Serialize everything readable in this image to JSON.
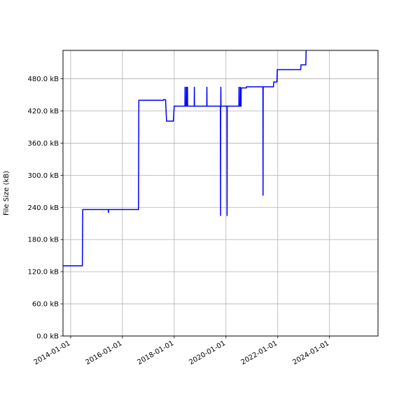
{
  "chart_data": {
    "type": "line",
    "title": "",
    "xlabel": "",
    "ylabel": "File Size (kB)",
    "grid": true,
    "legend": "none",
    "line_color": "#0000ff",
    "xlim": [
      "2013-09-15",
      "2025-11-15"
    ],
    "ylim": [
      0,
      533
    ],
    "x_ticks": [
      "2014-01-01",
      "2016-01-01",
      "2018-01-01",
      "2020-01-01",
      "2022-01-01",
      "2024-01-01"
    ],
    "y_ticks": [
      0,
      60,
      120,
      180,
      240,
      300,
      360,
      420,
      480
    ],
    "y_tick_labels": [
      "0.0 kB",
      "60.0 kB",
      "120.0 kB",
      "180.0 kB",
      "240.0 kB",
      "300.0 kB",
      "360.0 kB",
      "420.0 kB",
      "480.0 kB"
    ],
    "series": [
      {
        "values": [
          [
            "2013-09-15",
            131
          ],
          [
            "2014-06-15",
            131
          ],
          [
            "2014-06-20",
            236
          ],
          [
            "2015-06-15",
            236
          ],
          [
            "2015-06-18",
            230
          ],
          [
            "2015-06-21",
            236
          ],
          [
            "2016-08-15",
            236
          ],
          [
            "2016-08-20",
            440
          ],
          [
            "2017-08-01",
            440
          ],
          [
            "2017-08-05",
            441
          ],
          [
            "2017-09-01",
            441
          ],
          [
            "2017-09-15",
            401
          ],
          [
            "2017-12-20",
            401
          ],
          [
            "2018-01-01",
            429
          ],
          [
            "2018-06-01",
            429
          ],
          [
            "2018-06-03",
            465
          ],
          [
            "2018-06-05",
            429
          ],
          [
            "2018-06-20",
            429
          ],
          [
            "2018-06-22",
            465
          ],
          [
            "2018-06-24",
            429
          ],
          [
            "2018-07-05",
            429
          ],
          [
            "2018-07-07",
            465
          ],
          [
            "2018-07-09",
            429
          ],
          [
            "2018-10-10",
            429
          ],
          [
            "2018-10-12",
            465
          ],
          [
            "2018-10-14",
            429
          ],
          [
            "2019-04-05",
            429
          ],
          [
            "2019-04-07",
            465
          ],
          [
            "2019-04-09",
            429
          ],
          [
            "2019-10-15",
            429
          ],
          [
            "2019-10-17",
            224
          ],
          [
            "2019-10-19",
            429
          ],
          [
            "2019-10-21",
            465
          ],
          [
            "2019-10-23",
            429
          ],
          [
            "2020-01-15",
            429
          ],
          [
            "2020-01-17",
            224
          ],
          [
            "2020-01-19",
            429
          ],
          [
            "2020-07-01",
            429
          ],
          [
            "2020-07-03",
            465
          ],
          [
            "2020-07-05",
            429
          ],
          [
            "2020-07-20",
            429
          ],
          [
            "2020-07-22",
            465
          ],
          [
            "2020-07-24",
            429
          ],
          [
            "2020-08-01",
            429
          ],
          [
            "2020-08-03",
            463
          ],
          [
            "2020-10-15",
            463
          ],
          [
            "2020-10-17",
            465
          ],
          [
            "2021-06-05",
            465
          ],
          [
            "2021-06-07",
            262
          ],
          [
            "2021-06-09",
            465
          ],
          [
            "2021-11-01",
            465
          ],
          [
            "2021-11-05",
            474
          ],
          [
            "2021-12-20",
            474
          ],
          [
            "2021-12-25",
            497
          ],
          [
            "2022-11-20",
            497
          ],
          [
            "2022-11-25",
            506
          ],
          [
            "2023-02-01",
            506
          ],
          [
            "2023-02-05",
            533
          ]
        ]
      }
    ]
  }
}
